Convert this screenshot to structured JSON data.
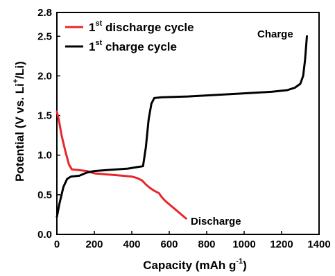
{
  "chart_data": {
    "type": "line",
    "xlabel": "Capacity (mAh g",
    "xlabel_sup": "-1",
    "xlabel_end": ")",
    "ylabel_parts": [
      "Potential (V vs. Li",
      "+",
      "/Li)"
    ],
    "xlim": [
      0,
      1400
    ],
    "ylim": [
      0.0,
      2.8
    ],
    "x_ticks": [
      0,
      200,
      400,
      600,
      800,
      1000,
      1200,
      1400
    ],
    "y_ticks": [
      0.0,
      0.5,
      1.0,
      1.5,
      2.0,
      2.5,
      2.8
    ],
    "x_tick_labels": [
      "0",
      "200",
      "400",
      "600",
      "800",
      "1000",
      "1200",
      "1400"
    ],
    "y_tick_labels": [
      "0.0",
      "0.5",
      "1.0",
      "1.5",
      "2.0",
      "2.5",
      "2.8"
    ],
    "grid": false,
    "legend_position": "top-left",
    "series": [
      {
        "name_main": "1",
        "name_sup": "st",
        "name_rest": " discharge cycle",
        "color": "#e8262a",
        "points": [
          [
            0,
            1.55
          ],
          [
            10,
            1.45
          ],
          [
            25,
            1.25
          ],
          [
            45,
            1.05
          ],
          [
            65,
            0.88
          ],
          [
            80,
            0.82
          ],
          [
            120,
            0.81
          ],
          [
            160,
            0.8
          ],
          [
            200,
            0.77
          ],
          [
            250,
            0.76
          ],
          [
            300,
            0.75
          ],
          [
            350,
            0.74
          ],
          [
            400,
            0.73
          ],
          [
            430,
            0.71
          ],
          [
            455,
            0.68
          ],
          [
            475,
            0.63
          ],
          [
            495,
            0.59
          ],
          [
            520,
            0.55
          ],
          [
            545,
            0.52
          ],
          [
            560,
            0.47
          ],
          [
            580,
            0.42
          ],
          [
            610,
            0.36
          ],
          [
            640,
            0.3
          ],
          [
            665,
            0.25
          ],
          [
            690,
            0.2
          ]
        ],
        "end_label": "Discharge"
      },
      {
        "name_main": "1",
        "name_sup": "st",
        "name_rest": " charge cycle",
        "color": "#000000",
        "points": [
          [
            0,
            0.22
          ],
          [
            15,
            0.4
          ],
          [
            35,
            0.6
          ],
          [
            55,
            0.7
          ],
          [
            75,
            0.73
          ],
          [
            120,
            0.74
          ],
          [
            160,
            0.78
          ],
          [
            200,
            0.8
          ],
          [
            260,
            0.81
          ],
          [
            320,
            0.82
          ],
          [
            380,
            0.83
          ],
          [
            430,
            0.85
          ],
          [
            460,
            0.86
          ],
          [
            475,
            1.1
          ],
          [
            490,
            1.45
          ],
          [
            505,
            1.65
          ],
          [
            520,
            1.72
          ],
          [
            560,
            1.73
          ],
          [
            700,
            1.74
          ],
          [
            850,
            1.76
          ],
          [
            1000,
            1.78
          ],
          [
            1150,
            1.8
          ],
          [
            1230,
            1.82
          ],
          [
            1270,
            1.85
          ],
          [
            1300,
            1.9
          ],
          [
            1315,
            2.0
          ],
          [
            1325,
            2.2
          ],
          [
            1332,
            2.4
          ],
          [
            1335,
            2.5
          ]
        ],
        "end_label": "Charge"
      }
    ]
  }
}
